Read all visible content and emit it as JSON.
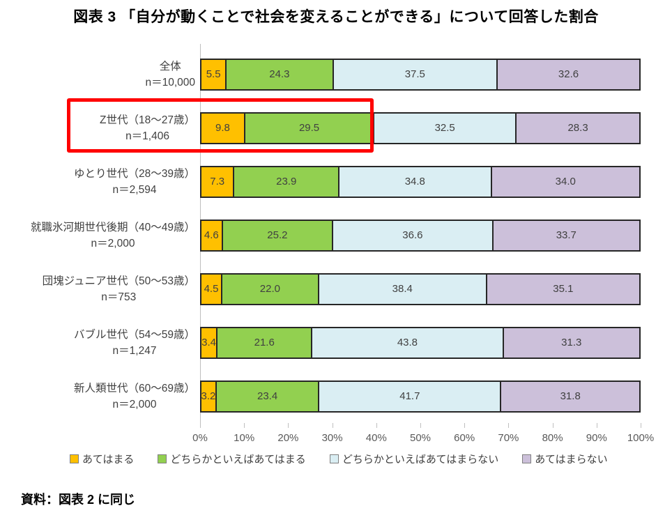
{
  "title": "図表 3 「自分が動くことで社会を変えることができる」について回答した割合",
  "source_note": "資料：図表 2 に同じ",
  "colors": {
    "agree": "#FFC000",
    "somewhat_agree": "#92D050",
    "somewhat_disagree": "#DAEEF3",
    "disagree": "#CCC0DA",
    "segment_border": "#262626",
    "highlight_box": "#FF0000",
    "axis_line": "#BFBFBF",
    "text": "#404040"
  },
  "chart_data": {
    "type": "bar",
    "stacked": true,
    "orientation": "horizontal",
    "title": "図表 3 「自分が動くことで社会を変えることができる」について回答した割合",
    "xlabel": "",
    "ylabel": "",
    "xlim": [
      0,
      100
    ],
    "x_ticks": [
      "0%",
      "10%",
      "20%",
      "30%",
      "40%",
      "50%",
      "60%",
      "70%",
      "80%",
      "90%",
      "100%"
    ],
    "legend_position": "bottom",
    "grid": false,
    "categories": [
      {
        "label": "全体",
        "n": "n＝10,000"
      },
      {
        "label": "Z世代（18〜27歳）",
        "n": "n＝1,406"
      },
      {
        "label": "ゆとり世代（28〜39歳）",
        "n": "n＝2,594"
      },
      {
        "label": "就職氷河期世代後期（40〜49歳）",
        "n": "n＝2,000"
      },
      {
        "label": "団塊ジュニア世代（50〜53歳）",
        "n": "n＝753"
      },
      {
        "label": "バブル世代（54〜59歳）",
        "n": "n＝1,247"
      },
      {
        "label": "新人類世代（60〜69歳）",
        "n": "n＝2,000"
      }
    ],
    "series": [
      {
        "name": "あてはまる",
        "color": "#FFC000",
        "values": [
          5.5,
          9.8,
          7.3,
          4.6,
          4.5,
          3.4,
          3.2
        ],
        "labels": [
          "5.5",
          "9.8",
          "7.3",
          "4.6",
          "4.5",
          "3.4",
          "3.2"
        ]
      },
      {
        "name": "どちらかといえばあてはまる",
        "color": "#92D050",
        "values": [
          24.3,
          29.5,
          23.9,
          25.2,
          22.0,
          21.6,
          23.4
        ],
        "labels": [
          "24.3",
          "29.5",
          "23.9",
          "25.2",
          "22.0",
          "21.6",
          "23.4"
        ]
      },
      {
        "name": "どちらかといえばあてはまらない",
        "color": "#DAEEF3",
        "values": [
          37.5,
          32.5,
          34.8,
          36.6,
          38.4,
          43.8,
          41.7
        ],
        "labels": [
          "37.5",
          "32.5",
          "34.8",
          "36.6",
          "38.4",
          "43.8",
          "41.7"
        ]
      },
      {
        "name": "あてはまらない",
        "color": "#CCC0DA",
        "values": [
          32.6,
          28.3,
          34.0,
          33.7,
          35.1,
          31.3,
          31.8
        ],
        "labels": [
          "32.6",
          "28.3",
          "34.0",
          "33.7",
          "35.1",
          "31.3",
          "31.8"
        ]
      }
    ],
    "highlight": {
      "category_index": 1,
      "label": "Z世代（18〜27歳）"
    }
  }
}
